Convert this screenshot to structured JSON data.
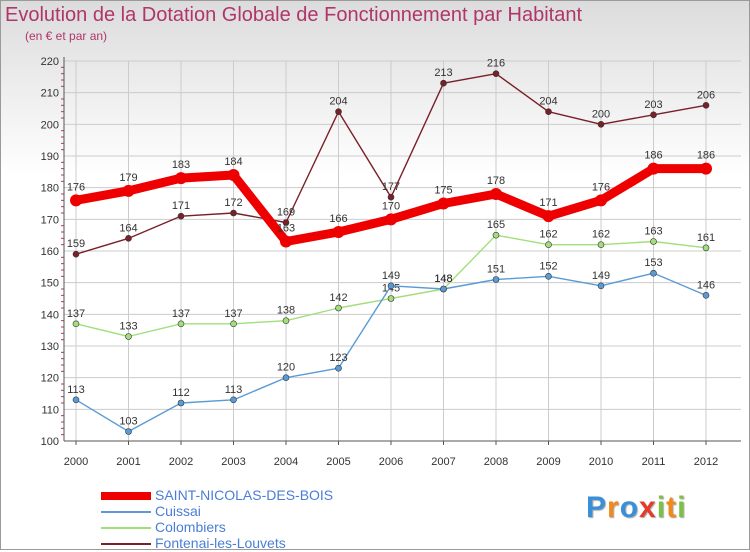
{
  "chart_data": {
    "type": "line",
    "title": "Evolution de la Dotation Globale de Fonctionnement par Habitant",
    "subtitle": "(en € et par an)",
    "xlabel": "",
    "ylabel": "",
    "categories": [
      "2000",
      "2001",
      "2002",
      "2003",
      "2004",
      "2005",
      "2006",
      "2007",
      "2008",
      "2009",
      "2010",
      "2011",
      "2012"
    ],
    "ylim": [
      100,
      220
    ],
    "yticks": [
      100,
      110,
      120,
      130,
      140,
      150,
      160,
      170,
      180,
      190,
      200,
      210,
      220
    ],
    "grid": true,
    "legend_position": "bottom-left",
    "series": [
      {
        "name": "Fontenai-les-Louvets",
        "color": "#7a2028",
        "values": [
          159,
          164,
          171,
          172,
          169,
          204,
          177,
          213,
          216,
          204,
          200,
          203,
          206
        ]
      },
      {
        "name": "Colombiers",
        "color": "#a3de7d",
        "values": [
          137,
          133,
          137,
          137,
          138,
          142,
          145,
          148,
          165,
          162,
          162,
          163,
          161
        ]
      },
      {
        "name": "Cuissai",
        "color": "#5b9bd5",
        "values": [
          113,
          103,
          112,
          113,
          120,
          123,
          149,
          148,
          151,
          152,
          149,
          153,
          146
        ]
      },
      {
        "name": "SAINT-NICOLAS-DES-BOIS",
        "color": "#ee0000",
        "values": [
          176,
          179,
          183,
          184,
          163,
          166,
          170,
          175,
          178,
          171,
          176,
          186,
          186
        ]
      }
    ]
  },
  "legend": {
    "items": [
      {
        "label": "SAINT-NICOLAS-DES-BOIS",
        "color": "#ee0000",
        "thick": true
      },
      {
        "label": "Cuissai",
        "color": "#5b9bd5",
        "thick": false
      },
      {
        "label": "Colombiers",
        "color": "#a3de7d",
        "thick": false
      },
      {
        "label": "Fontenai-les-Louvets",
        "color": "#7a2028",
        "thick": false
      }
    ]
  },
  "logo": {
    "letters": [
      {
        "ch": "P",
        "color": "#3a8fd6"
      },
      {
        "ch": "r",
        "color": "#f08a1c"
      },
      {
        "ch": "o",
        "color": "#3a8fd6"
      },
      {
        "ch": "x",
        "color": "#e43b2a"
      },
      {
        "ch": "i",
        "color": "#7cc242"
      },
      {
        "ch": "t",
        "color": "#f08a1c"
      },
      {
        "ch": "i",
        "color": "#7cc242"
      }
    ]
  }
}
